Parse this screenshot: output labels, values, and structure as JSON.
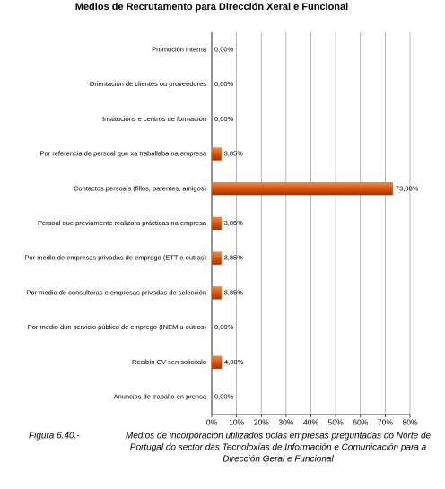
{
  "chart_data": {
    "type": "hbar",
    "title": "Medios de Recrutamento para Dirección Xeral e Funcional",
    "categories": [
      "Promoción interna",
      "Orientación de clientes ou proveedores",
      "Institucións e centros de formación",
      "Por referencia de persoal que xa traballaba na empresa",
      "Contactos persoais (fillos, parentes, amigos)",
      "Persoal que previamente realizara prácticas na empresa",
      "Por medio de empresas privadas de emprego (ETT e outras)",
      "Por medio  de consultoras e empresas privadas de selección",
      "Por medio dun servicio público de emprego (INEM u outros)",
      "Recibín CV sen solicitalo",
      "Anuncios de traballo en prensa"
    ],
    "values": [
      0,
      0,
      0,
      3.85,
      73.08,
      3.85,
      3.85,
      3.85,
      0,
      4,
      0
    ],
    "value_labels": [
      "0,00%",
      "0,00%",
      "0,00%",
      "3,85%",
      "73,08%",
      "3,85%",
      "3,85%",
      "3,85%",
      "0,00%",
      "4,00%",
      "0,00%"
    ],
    "color": "#d9540f",
    "xlim": [
      0,
      80
    ],
    "xticks": [
      {
        "value": 0,
        "label": "0%"
      },
      {
        "value": 10,
        "label": "10%"
      },
      {
        "value": 20,
        "label": "20%"
      },
      {
        "value": 30,
        "label": "30%"
      },
      {
        "value": 40,
        "label": "40%"
      },
      {
        "value": 50,
        "label": "50%"
      },
      {
        "value": 60,
        "label": "60%"
      },
      {
        "value": 70,
        "label": "70%"
      },
      {
        "value": 80,
        "label": "80%"
      }
    ],
    "grid": true,
    "caption": {
      "label": "Figura 6.40.-",
      "lines": [
        "Medios de incorporación utilizados polas empresas preguntadas do Norte de",
        "Portugal do sector das Tecnoloxías de Información e Comunicación para a",
        "Dirección Geral e Funcional"
      ]
    }
  }
}
